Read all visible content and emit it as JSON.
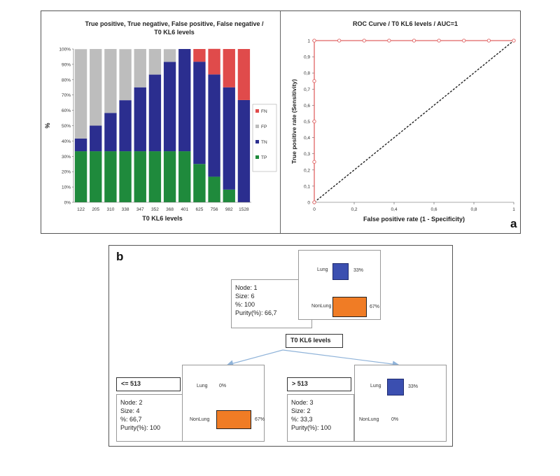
{
  "chart_data": [
    {
      "type": "bar",
      "stacked": true,
      "title": "True positive, True negative, False positive, False negative / T0 KL6 levels",
      "xlabel": "T0 KL6 levels",
      "ylabel": "%",
      "ylim": [
        0,
        100
      ],
      "yticks": [
        "0%",
        "10%",
        "20%",
        "30%",
        "40%",
        "50%",
        "60%",
        "70%",
        "80%",
        "90%",
        "100%"
      ],
      "categories": [
        "122",
        "205",
        "310",
        "338",
        "347",
        "352",
        "368",
        "401",
        "625",
        "756",
        "982",
        "1528"
      ],
      "series": [
        {
          "name": "TP",
          "color": "#1f8a3c",
          "values": [
            33.3,
            33.3,
            33.3,
            33.3,
            33.3,
            33.3,
            33.3,
            33.3,
            25,
            16.7,
            8.3,
            0
          ]
        },
        {
          "name": "TN",
          "color": "#2b2e8f",
          "values": [
            8.3,
            16.7,
            25,
            33.3,
            41.7,
            50,
            58.3,
            66.7,
            66.7,
            66.7,
            66.7,
            66.7
          ]
        },
        {
          "name": "FP",
          "color": "#bdbdbd",
          "values": [
            58.3,
            50,
            41.7,
            33.3,
            25,
            16.7,
            8.3,
            0,
            0,
            0,
            0,
            0
          ]
        },
        {
          "name": "FN",
          "color": "#e04b4b",
          "values": [
            0,
            0,
            0,
            0,
            0,
            0,
            0,
            0,
            8.3,
            16.7,
            25,
            33.3
          ]
        }
      ],
      "legend": "right",
      "grid": false
    },
    {
      "type": "line",
      "title": "ROC Curve / T0 KL6 levels / AUC=1",
      "xlabel": "False positive rate (1 - Specificity)",
      "ylabel": "True positive rate (Sensitivity)",
      "xlim": [
        0,
        1
      ],
      "ylim": [
        0,
        1
      ],
      "xticks": [
        "0",
        "0,2",
        "0,4",
        "0,6",
        "0,8",
        "1"
      ],
      "yticks": [
        "0",
        "0,1",
        "0,2",
        "0,3",
        "0,4",
        "0,5",
        "0,6",
        "0,7",
        "0,8",
        "0,9",
        "1"
      ],
      "series": [
        {
          "color": "#e06464",
          "marker": "circle",
          "x": [
            0,
            0,
            0,
            0,
            0,
            0.125,
            0.25,
            0.375,
            0.5,
            0.625,
            0.75,
            0.875,
            1
          ],
          "y": [
            0,
            0.25,
            0.5,
            0.75,
            1,
            1,
            1,
            1,
            1,
            1,
            1,
            1,
            1
          ]
        },
        {
          "color": "#222222",
          "style": "dashed",
          "x": [
            0,
            1
          ],
          "y": [
            0,
            1
          ]
        }
      ],
      "grid": false
    }
  ],
  "panel_a_label": "a",
  "panel_b_label": "b",
  "tree": {
    "split_variable": "T0 KL6 levels",
    "root": {
      "lines": [
        "Node: 1",
        "Size: 6",
        "%: 100",
        "Purity(%): 66,7"
      ],
      "lung_label": "Lung",
      "lung_pct": "33%",
      "lung_value": 33,
      "non_label": "NonLung",
      "non_pct": "67%",
      "non_value": 67
    },
    "left": {
      "condition": "<= 513",
      "lines": [
        "Node: 2",
        "Size: 4",
        "%: 66,7",
        "Purity(%): 100"
      ],
      "lung_label": "Lung",
      "lung_pct": "0%",
      "lung_value": 0,
      "non_label": "NonLung",
      "non_pct": "67%",
      "non_value": 67
    },
    "right": {
      "condition": "> 513",
      "lines": [
        "Node: 3",
        "Size: 2",
        "%: 33,3",
        "Purity(%): 100"
      ],
      "lung_label": "Lung",
      "lung_pct": "33%",
      "lung_value": 33,
      "non_label": "NonLung",
      "non_pct": "0%",
      "non_value": 0
    }
  }
}
